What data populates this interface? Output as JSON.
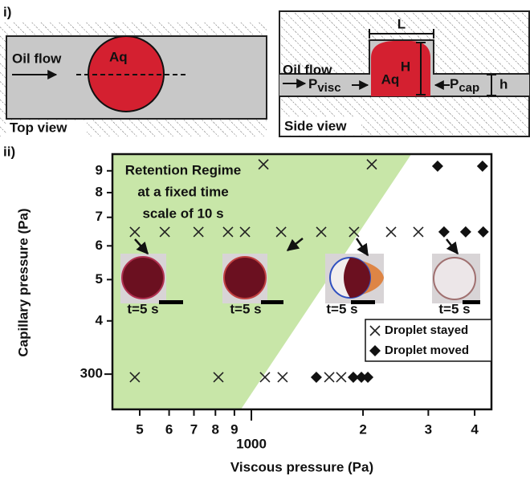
{
  "schematic": {
    "panel_i": "i)",
    "top": {
      "flow": "Oil flow",
      "drop": "Aq",
      "view": "Top view"
    },
    "side": {
      "flow": "Oil flow",
      "drop": "Aq",
      "length": "L",
      "height": "H",
      "channel": "h",
      "p_visc": {
        "symbol": "P",
        "subscript": "visc"
      },
      "p_cap": {
        "symbol": "P",
        "subscript": "cap"
      },
      "view": "Side view"
    },
    "panel_ii": "ii)"
  },
  "chart_data": {
    "type": "scatter",
    "x_label": "Viscous pressure (Pa)",
    "y_label": "Capillary pressure (Pa)",
    "log_x": true,
    "log_y": true,
    "xlim": [
      422,
      4440
    ],
    "ylim": [
      248,
      985
    ],
    "xticks": [
      {
        "value": 500,
        "label": "5"
      },
      {
        "value": 600,
        "label": "6"
      },
      {
        "value": 700,
        "label": "7"
      },
      {
        "value": 800,
        "label": "8"
      },
      {
        "value": 900,
        "label": "9"
      },
      1000,
      {
        "value": 2000,
        "label": "2"
      },
      {
        "value": 3000,
        "label": "3"
      },
      {
        "value": 4000,
        "label": "4"
      }
    ],
    "yticks": [
      300,
      {
        "value": 400,
        "label": "4"
      },
      {
        "value": 500,
        "label": "5"
      },
      {
        "value": 600,
        "label": "6"
      },
      {
        "value": 700,
        "label": "7"
      },
      {
        "value": 800,
        "label": "8"
      },
      {
        "value": 900,
        "label": "9"
      }
    ],
    "region": {
      "name": [
        "Retention Regime",
        "at a fixed time",
        "scale of 10 s"
      ],
      "color": "#c8e6a8",
      "x": [
        422,
        2700,
        937,
        422
      ],
      "y": [
        985,
        985,
        248,
        248
      ]
    },
    "series": [
      {
        "name": "Droplet stayed",
        "marker": "x",
        "color": "#222222",
        "x": [
          485,
          584,
          720,
          865,
          961,
          1203,
          1543,
          1892,
          2381,
          2820,
          1078,
          2112,
          485,
          815,
          1088,
          1214,
          1622,
          1747
        ],
        "values": [
          647,
          647,
          647,
          647,
          647,
          647,
          647,
          647,
          647,
          647,
          932,
          932,
          295,
          295,
          295,
          295,
          295,
          295
        ]
      },
      {
        "name": "Droplet moved",
        "marker": "diamond",
        "color": "#111111",
        "x": [
          1497,
          1883,
          1980,
          2061,
          3178,
          4200,
          3307,
          3783,
          4219
        ],
        "values": [
          295,
          295,
          295,
          295,
          923,
          923,
          647,
          647,
          647
        ]
      }
    ],
    "inset_labels": [
      "t=5 s",
      "t=5 s",
      "t=5 s",
      "t=5 s"
    ]
  }
}
